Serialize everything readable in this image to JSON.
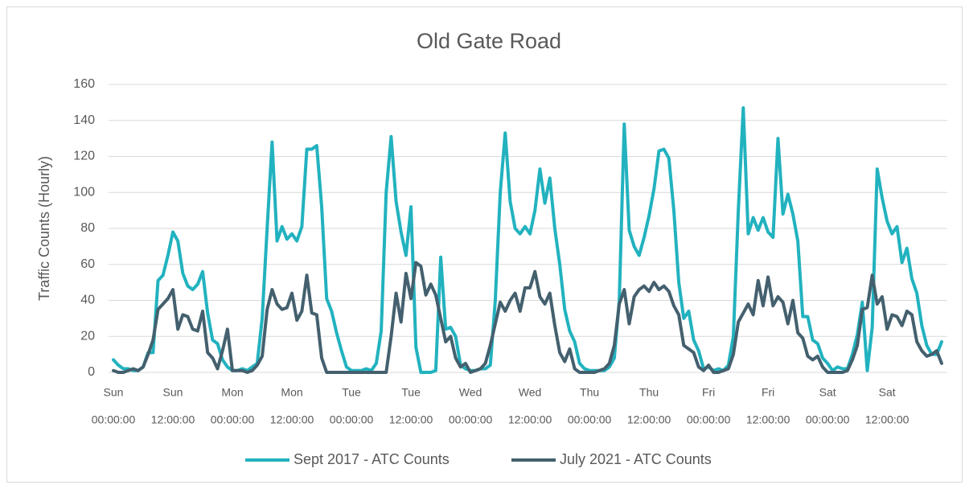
{
  "chart_data": {
    "type": "line",
    "title": "Old Gate Road",
    "y_label": "Traffic Counts (Hourly)",
    "categories": [
      [
        "Sun",
        "00:00:00"
      ],
      null,
      null,
      null,
      null,
      null,
      null,
      null,
      null,
      null,
      null,
      null,
      [
        "Sun",
        "12:00:00"
      ],
      null,
      null,
      null,
      null,
      null,
      null,
      null,
      null,
      null,
      null,
      null,
      [
        "Mon",
        "00:00:00"
      ],
      null,
      null,
      null,
      null,
      null,
      null,
      null,
      null,
      null,
      null,
      null,
      [
        "Mon",
        "12:00:00"
      ],
      null,
      null,
      null,
      null,
      null,
      null,
      null,
      null,
      null,
      null,
      null,
      [
        "Tue",
        "00:00:00"
      ],
      null,
      null,
      null,
      null,
      null,
      null,
      null,
      null,
      null,
      null,
      null,
      [
        "Tue",
        "12:00:00"
      ],
      null,
      null,
      null,
      null,
      null,
      null,
      null,
      null,
      null,
      null,
      null,
      [
        "Wed",
        "00:00:00"
      ],
      null,
      null,
      null,
      null,
      null,
      null,
      null,
      null,
      null,
      null,
      null,
      [
        "Wed",
        "12:00:00"
      ],
      null,
      null,
      null,
      null,
      null,
      null,
      null,
      null,
      null,
      null,
      null,
      [
        "Thu",
        "00:00:00"
      ],
      null,
      null,
      null,
      null,
      null,
      null,
      null,
      null,
      null,
      null,
      null,
      [
        "Thu",
        "12:00:00"
      ],
      null,
      null,
      null,
      null,
      null,
      null,
      null,
      null,
      null,
      null,
      null,
      [
        "Fri",
        "00:00:00"
      ],
      null,
      null,
      null,
      null,
      null,
      null,
      null,
      null,
      null,
      null,
      null,
      [
        "Fri",
        "12:00:00"
      ],
      null,
      null,
      null,
      null,
      null,
      null,
      null,
      null,
      null,
      null,
      null,
      [
        "Sat",
        "00:00:00"
      ],
      null,
      null,
      null,
      null,
      null,
      null,
      null,
      null,
      null,
      null,
      null,
      [
        "Sat",
        "12:00:00"
      ],
      null,
      null,
      null,
      null,
      null,
      null,
      null,
      null,
      null,
      null,
      null
    ],
    "series": [
      {
        "name": "Sept 2017 - ATC Counts",
        "color": "#22b2bf",
        "values": [
          7,
          4,
          2,
          2,
          1,
          1,
          3,
          11,
          11,
          51,
          54,
          65,
          78,
          73,
          55,
          48,
          46,
          49,
          56,
          33,
          18,
          16,
          7,
          3,
          1,
          1,
          2,
          1,
          3,
          5,
          30,
          80,
          128,
          73,
          81,
          74,
          77,
          73,
          81,
          124,
          124,
          126,
          92,
          41,
          34,
          22,
          12,
          3,
          1,
          1,
          1,
          2,
          1,
          5,
          23,
          100,
          131,
          95,
          78,
          65,
          92,
          14,
          0,
          0,
          0,
          1,
          64,
          24,
          25,
          20,
          4,
          2,
          1,
          1,
          2,
          2,
          4,
          40,
          100,
          133,
          95,
          80,
          77,
          81,
          77,
          90,
          113,
          94,
          108,
          80,
          60,
          35,
          23,
          17,
          5,
          2,
          1,
          1,
          1,
          1,
          3,
          8,
          40,
          138,
          79,
          70,
          65,
          75,
          87,
          102,
          123,
          124,
          119,
          90,
          50,
          30,
          34,
          18,
          12,
          2,
          3,
          1,
          2,
          1,
          4,
          20,
          90,
          147,
          77,
          86,
          79,
          86,
          78,
          75,
          130,
          88,
          99,
          88,
          73,
          31,
          31,
          18,
          16,
          8,
          5,
          1,
          3,
          2,
          2,
          10,
          21,
          39,
          1,
          25,
          113,
          97,
          84,
          77,
          81,
          61,
          69,
          52,
          44,
          26,
          15,
          10,
          10,
          17
        ]
      },
      {
        "name": "July 2021 - ATC Counts",
        "color": "#44606e",
        "values": [
          1,
          0,
          0,
          1,
          2,
          1,
          3,
          10,
          18,
          35,
          38,
          41,
          46,
          24,
          32,
          31,
          24,
          23,
          34,
          11,
          8,
          2,
          12,
          24,
          1,
          1,
          1,
          0,
          1,
          4,
          9,
          35,
          46,
          38,
          35,
          36,
          44,
          29,
          34,
          54,
          33,
          32,
          8,
          0,
          0,
          0,
          0,
          0,
          0,
          0,
          0,
          0,
          0,
          0,
          0,
          0,
          20,
          44,
          28,
          55,
          41,
          61,
          59,
          43,
          49,
          43,
          30,
          17,
          20,
          8,
          3,
          5,
          0,
          1,
          2,
          5,
          15,
          27,
          39,
          34,
          40,
          44,
          34,
          47,
          47,
          56,
          42,
          38,
          44,
          26,
          11,
          6,
          13,
          2,
          0,
          0,
          0,
          0,
          1,
          2,
          5,
          15,
          38,
          46,
          27,
          42,
          46,
          48,
          45,
          50,
          46,
          48,
          45,
          37,
          32,
          15,
          13,
          11,
          3,
          1,
          4,
          0,
          0,
          1,
          2,
          10,
          28,
          33,
          38,
          32,
          51,
          37,
          53,
          37,
          42,
          39,
          27,
          40,
          22,
          19,
          9,
          7,
          9,
          3,
          0,
          0,
          0,
          0,
          1,
          7,
          15,
          35,
          36,
          54,
          38,
          42,
          24,
          32,
          31,
          26,
          34,
          32,
          17,
          12,
          9,
          10,
          12,
          5
        ]
      }
    ],
    "ylim": [
      0,
      160
    ],
    "yticks": [
      0,
      20,
      40,
      60,
      80,
      100,
      120,
      140,
      160
    ],
    "grid": true,
    "legend": "bottom"
  }
}
